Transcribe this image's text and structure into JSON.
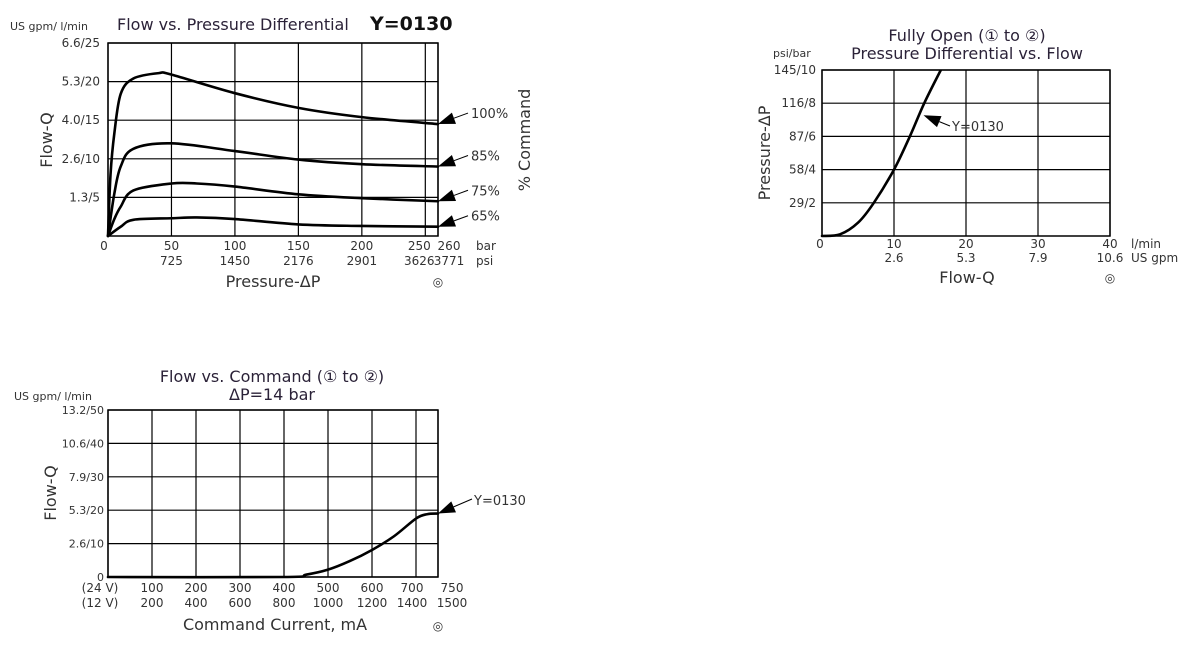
{
  "marker_symbol": "◎",
  "chart_data": [
    {
      "type": "line",
      "title": "Flow vs. Pressure Differential",
      "model": "Y=0130",
      "y_unit_label": "US gpm/ l/min",
      "ylabel": "Flow-Q",
      "xlabel": "Pressure-ΔP",
      "right_label": "% Command",
      "xlim": [
        0,
        260
      ],
      "ylim": [
        0,
        25
      ],
      "grid": true,
      "x_ticks": [
        0,
        50,
        100,
        150,
        200,
        250,
        260
      ],
      "x_tick_labels": [
        "0",
        "50",
        "100",
        "150",
        "200",
        "250",
        "260"
      ],
      "x_tick_labels_secondary": [
        "",
        "725",
        "1450",
        "2176",
        "2901",
        "3626",
        "3771"
      ],
      "x_unit": "bar",
      "x_unit_secondary": "psi",
      "y_ticks": [
        5,
        10,
        15,
        20,
        25
      ],
      "y_tick_labels": [
        "1.3/5",
        "2.6/10",
        "4.0/15",
        "5.3/20",
        "6.6/25"
      ],
      "series": [
        {
          "name": "100%",
          "x": [
            0,
            2,
            5,
            10,
            20,
            40,
            50,
            100,
            150,
            200,
            260
          ],
          "y": [
            0,
            8,
            13.3,
            18.4,
            20.4,
            21.1,
            20.9,
            18.5,
            16.6,
            15.4,
            14.5
          ]
        },
        {
          "name": "85%",
          "x": [
            0,
            5,
            10,
            20,
            50,
            100,
            150,
            200,
            260
          ],
          "y": [
            0,
            5.5,
            9.0,
            11.3,
            12.0,
            11.0,
            9.9,
            9.3,
            9.0
          ]
        },
        {
          "name": "75%",
          "x": [
            0,
            5,
            10,
            20,
            50,
            70,
            100,
            150,
            200,
            260
          ],
          "y": [
            0,
            2.2,
            3.8,
            5.9,
            6.8,
            6.8,
            6.4,
            5.4,
            4.9,
            4.5
          ]
        },
        {
          "name": "65%",
          "x": [
            0,
            10,
            20,
            50,
            70,
            100,
            150,
            200,
            260
          ],
          "y": [
            0,
            1.2,
            2.1,
            2.3,
            2.4,
            2.2,
            1.5,
            1.3,
            1.2
          ]
        }
      ]
    },
    {
      "type": "line",
      "title": "Fully Open (① to ②)",
      "subtitle": "Pressure Differential vs. Flow",
      "y_unit_label": "psi/bar",
      "ylabel": "Pressure-ΔP",
      "xlabel": "Flow-Q",
      "xlim": [
        0,
        40
      ],
      "ylim": [
        0,
        10
      ],
      "grid": true,
      "x_ticks": [
        0,
        10,
        20,
        30,
        40
      ],
      "x_tick_labels": [
        "0",
        "10",
        "20",
        "30",
        "40"
      ],
      "x_tick_labels_secondary": [
        "",
        "2.6",
        "5.3",
        "7.9",
        "10.6"
      ],
      "x_unit": "l/min",
      "x_unit_secondary": "US gpm",
      "y_ticks": [
        2,
        4,
        6,
        8,
        10
      ],
      "y_tick_labels": [
        "29/2",
        "58/4",
        "87/6",
        "116/8",
        "145/10"
      ],
      "series": [
        {
          "name": "Y=0130",
          "x": [
            0,
            2.5,
            5,
            7.2,
            10,
            12.2,
            14.2,
            16.5
          ],
          "y": [
            0,
            0.1,
            0.8,
            2,
            4,
            6,
            8,
            10
          ]
        }
      ]
    },
    {
      "type": "line",
      "title": "Flow vs. Command  (① to ②)",
      "subtitle": "ΔP=14 bar",
      "y_unit_label": "US gpm/ l/min",
      "ylabel": "Flow-Q",
      "xlabel": "Command Current, mA",
      "xlim": [
        0,
        750
      ],
      "ylim": [
        0,
        50
      ],
      "grid": true,
      "x_ticks": [
        0,
        100,
        200,
        300,
        400,
        500,
        600,
        700,
        750
      ],
      "x_tick_labels": [
        "(24 V)",
        "100",
        "200",
        "300",
        "400",
        "500",
        "600",
        "700",
        "750"
      ],
      "x_tick_labels_secondary": [
        "(12 V)",
        "200",
        "400",
        "600",
        "800",
        "1000",
        "1200",
        "1400",
        "1500"
      ],
      "y_ticks": [
        0,
        10,
        20,
        30,
        40,
        50
      ],
      "y_tick_labels": [
        "0",
        "2.6/10",
        "5.3/20",
        "7.9/30",
        "10.6/40",
        "13.2/50"
      ],
      "series": [
        {
          "name": "Y=0130",
          "x": [
            0,
            400,
            450,
            500,
            550,
            600,
            650,
            700,
            725,
            750
          ],
          "y": [
            0,
            0,
            0.7,
            2.2,
            4.8,
            8.1,
            12.2,
            17.5,
            18.8,
            19
          ]
        }
      ]
    }
  ]
}
